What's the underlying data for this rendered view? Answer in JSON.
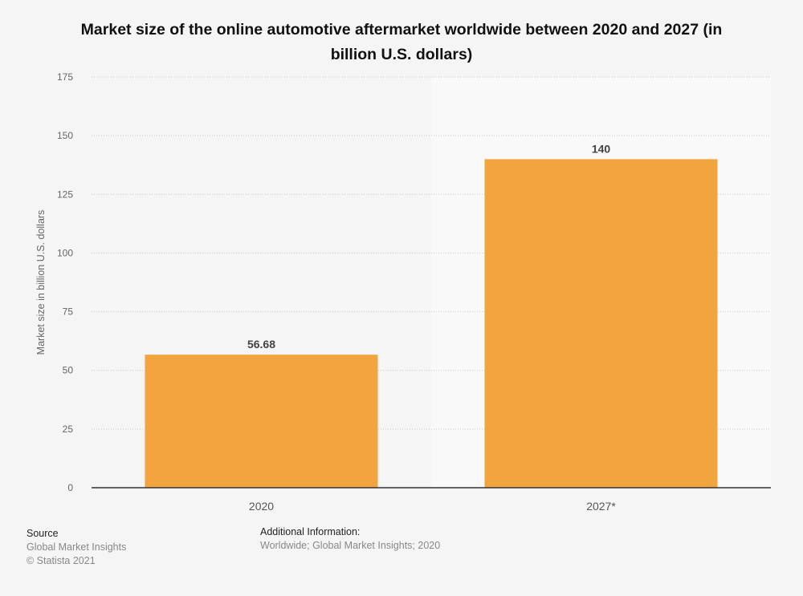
{
  "chart_data": {
    "type": "bar",
    "title": "Market size of the online automotive aftermarket worldwide between 2020 and 2027 (in billion U.S. dollars)",
    "categories": [
      "2020",
      "2027*"
    ],
    "values": [
      56.68,
      140
    ],
    "data_labels": [
      "56.68",
      "140"
    ],
    "xlabel": "",
    "ylabel": "Market size in billion U.S. dollars",
    "ylim": [
      0,
      175
    ],
    "yticks": [
      0,
      25,
      50,
      75,
      100,
      125,
      150,
      175
    ],
    "grid": true,
    "highlighted_region_category": "2027*",
    "bar_color": "#f2a43e"
  },
  "footer": {
    "source_heading": "Source",
    "source_lines": [
      "Global Market Insights",
      "© Statista 2021"
    ],
    "additional_heading": "Additional Information:",
    "additional_text": "Worldwide; Global Market Insights; 2020"
  }
}
